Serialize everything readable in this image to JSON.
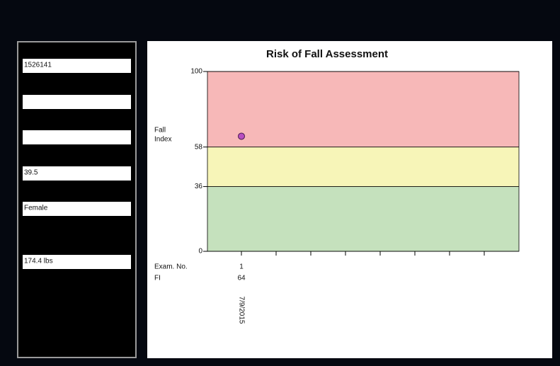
{
  "sidebar": {
    "fields": [
      "1526141",
      null,
      null,
      "39.5",
      "Female",
      "174.4 lbs"
    ]
  },
  "chart_data": {
    "type": "scatter",
    "title": "Risk of Fall Assessment",
    "ylabel": [
      "Fall",
      "Index"
    ],
    "row_labels": [
      "Exam. No.",
      "FI"
    ],
    "categories": [
      1,
      null,
      null,
      null,
      null,
      null,
      null,
      null
    ],
    "dates": [
      "7/9/2015",
      null,
      null,
      null,
      null,
      null,
      null,
      null
    ],
    "values": [
      64,
      null,
      null,
      null,
      null,
      null,
      null,
      null
    ],
    "color": "#b84fc0",
    "ylim": [
      0,
      100
    ],
    "yticks": [
      0,
      36,
      58,
      100
    ],
    "grid": true,
    "bands": [
      {
        "from": 58,
        "to": 100,
        "color": "#f7b8b8"
      },
      {
        "from": 36,
        "to": 58,
        "color": "#f7f5b8"
      },
      {
        "from": 0,
        "to": 36,
        "color": "#c5e1bd"
      }
    ]
  }
}
